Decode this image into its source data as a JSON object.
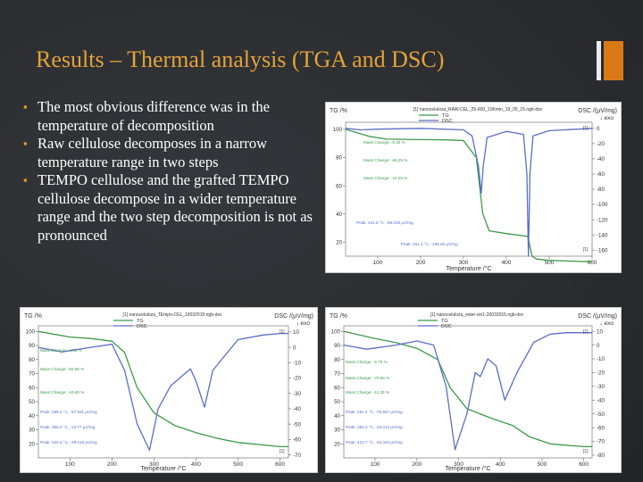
{
  "slide": {
    "title": "Results – Thermal analysis (TGA and DSC)",
    "bullets": [
      "The most obvious difference was in the temperature of decomposition",
      "Raw cellulose decomposes in a narrow temperature range in two steps",
      "TEMPO cellulose and the grafted TEMPO cellulose decompose in a wider temperature range and the two step decomposition is not as pronounced"
    ],
    "colors": {
      "title": "#e3a33a",
      "bullet": "#e39a2a",
      "tga": "#3d9a4c",
      "dsc": "#5b6ec8",
      "accent_bar": "#d97a16"
    }
  },
  "chart_data": [
    {
      "type": "line",
      "file_label": "[1] nanoceluloza_RAW-CEL_25-600_10Kmin_19_05_15.ngb-dsv",
      "legend": [
        "TG",
        "DSC"
      ],
      "ylabel_left": "TG /%",
      "ylabel_right": "DSC /(µV/mg)",
      "exo_label": "↓ exo",
      "xlabel": "Temperature /°C",
      "xlim": [
        25,
        600
      ],
      "ylim_left": [
        10,
        105
      ],
      "ylim_right": [
        -168,
        8
      ],
      "x_ticks": [
        100,
        200,
        300,
        400,
        500,
        600
      ],
      "y_left_ticks": [
        20,
        40,
        60,
        80,
        100
      ],
      "y_right_ticks": [
        0,
        -20,
        -40,
        -60,
        -80,
        -100,
        -120,
        -140,
        -160
      ],
      "series": [
        {
          "name": "TG",
          "color": "#3d9a4c",
          "x": [
            25,
            80,
            120,
            200,
            260,
            300,
            330,
            345,
            360,
            400,
            450,
            460,
            470,
            500,
            600
          ],
          "y": [
            100,
            95,
            93,
            92.7,
            92.5,
            92,
            80,
            40,
            28,
            26,
            24,
            10,
            8,
            7,
            6
          ]
        },
        {
          "name": "DSC",
          "color": "#5b6ec8",
          "x": [
            25,
            60,
            100,
            200,
            300,
            320,
            335,
            341.5,
            346,
            355,
            400,
            440,
            448,
            451.4,
            455,
            462,
            500,
            600
          ],
          "y": [
            0,
            -2,
            -1,
            0,
            -2,
            -10,
            -50,
            -85,
            -50,
            -12,
            -4,
            -8,
            -60,
            -168,
            -60,
            -10,
            -3,
            0
          ]
        }
      ],
      "annotations": [
        "Mass Change: -6.42 %",
        "Mass Change: -68.29 %",
        "Mass Change: -22.25 %",
        "Peak: 341.5 °C, -85.029 µV/mg",
        "Peak: 451.4 °C, -168.06 µV/mg"
      ],
      "curve_marks": [
        "[1]",
        "[1]"
      ]
    },
    {
      "type": "line",
      "file_label": "[1] nanoceluloza_TEmpo-CEL_19032015.ngb-dsv",
      "legend": [
        "TG",
        "DSC"
      ],
      "ylabel_left": "TG /%",
      "ylabel_right": "DSC /(µV/mg)",
      "exo_label": "↓ exo",
      "xlabel": "Temperature /°C",
      "xlim": [
        25,
        620
      ],
      "ylim_left": [
        10,
        104
      ],
      "ylim_right": [
        -72,
        14
      ],
      "x_ticks": [
        100,
        200,
        300,
        400,
        500,
        600
      ],
      "y_left_ticks": [
        20,
        30,
        40,
        50,
        60,
        70,
        80,
        90,
        100
      ],
      "y_right_ticks": [
        10,
        0,
        -10,
        -20,
        -30,
        -40,
        -50,
        -60,
        -70
      ],
      "series": [
        {
          "name": "TG",
          "color": "#3d9a4c",
          "x": [
            25,
            100,
            150,
            200,
            230,
            260,
            300,
            350,
            400,
            450,
            500,
            600,
            620
          ],
          "y": [
            100,
            96,
            95,
            93,
            85,
            60,
            42,
            33,
            28,
            24,
            21,
            18,
            18
          ]
        },
        {
          "name": "DSC",
          "color": "#5b6ec8",
          "x": [
            25,
            80,
            150,
            200,
            230,
            260,
            289.4,
            310,
            340,
            386.6,
            400,
            420.3,
            440,
            500,
            560,
            600,
            620
          ],
          "y": [
            0,
            -3,
            0,
            2,
            -15,
            -50,
            -67,
            -40,
            -25,
            -14,
            -22,
            -39,
            -15,
            5,
            8,
            9,
            9
          ]
        }
      ],
      "annotations": [
        "Mass Change: -4.53 %",
        "Mass Change: -55.86 %",
        "Mass Change: -10.88 %",
        "Peak: 289.4 °C, -67.591 µV/mg",
        "Peak: 386.6 °C, -13.77 µV/mg",
        "Peak: 420.3 °C, -39.016 µV/mg"
      ],
      "curve_marks": [
        "[1]",
        "[1]"
      ]
    },
    {
      "type": "line",
      "file_label": "[1] nanoceluloza_ester-sin1-20032015.ngb-dsv",
      "legend": [
        "TG",
        "DSC"
      ],
      "ylabel_left": "TG /%",
      "ylabel_right": "DSC /(µV/mg)",
      "exo_label": "↓ exo",
      "xlabel": "Temperature /°C",
      "xlim": [
        25,
        620
      ],
      "ylim_left": [
        10,
        104
      ],
      "ylim_right": [
        -82,
        14
      ],
      "x_ticks": [
        100,
        200,
        300,
        400,
        500,
        600
      ],
      "y_left_ticks": [
        20,
        30,
        40,
        50,
        60,
        70,
        80,
        90,
        100
      ],
      "y_right_ticks": [
        10,
        0,
        -10,
        -20,
        -30,
        -40,
        -50,
        -60,
        -70,
        -80
      ],
      "series": [
        {
          "name": "TG",
          "color": "#3d9a4c",
          "x": [
            25,
            100,
            150,
            200,
            250,
            280,
            320,
            380,
            430,
            470,
            520,
            600,
            620
          ],
          "y": [
            100,
            95,
            92,
            88,
            80,
            60,
            45,
            38,
            33,
            25,
            20,
            18,
            18
          ]
        },
        {
          "name": "DSC",
          "color": "#5b6ec8",
          "x": [
            25,
            80,
            150,
            200,
            240,
            270,
            291.4,
            320,
            340,
            352,
            370,
            390,
            410.7,
            440,
            480,
            520,
            560,
            600,
            620
          ],
          "y": [
            0,
            -3,
            0,
            3,
            0,
            -30,
            -76,
            -50,
            -20,
            -23,
            -10,
            -15,
            -40,
            -20,
            2,
            8,
            9,
            9,
            9
          ]
        }
      ],
      "annotations": [
        "Mass Change: -5.76 %",
        "Mass Change: -76.85 %",
        "Mass Change: -11.33 %",
        "Peak: 291.4 °C, -75.887 µV/mg",
        "Peak: 352.0 °C, -23.012 µV/mg",
        "Peak: 410.7 °C, -40.333 µV/mg"
      ],
      "curve_marks": [
        "[1]",
        "[1]"
      ]
    }
  ]
}
